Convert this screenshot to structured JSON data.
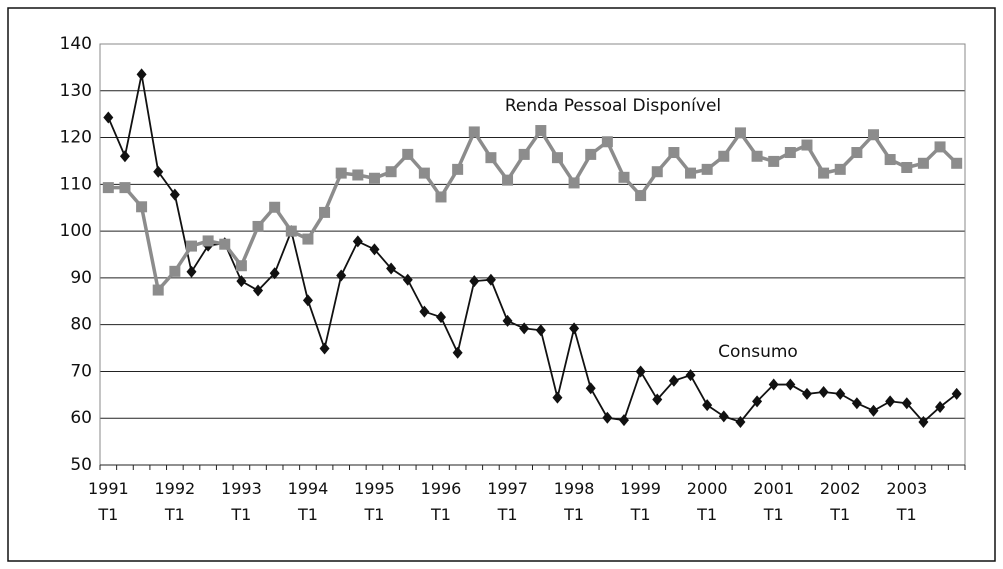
{
  "chart_data": {
    "type": "line",
    "categories": [
      "1991\nT1",
      null,
      null,
      null,
      "1992\nT1",
      null,
      null,
      null,
      "1993\nT1",
      null,
      null,
      null,
      "1994\nT1",
      null,
      null,
      null,
      "1995\nT1",
      null,
      null,
      null,
      "1996\nT1",
      null,
      null,
      null,
      "1997\nT1",
      null,
      null,
      null,
      "1998\nT1",
      null,
      null,
      null,
      "1999\nT1",
      null,
      null,
      null,
      "2000\nT1",
      null,
      null,
      null,
      "2001\nT1",
      null,
      null,
      null,
      "2002\nT1",
      null,
      null,
      null,
      "2003\nT1",
      null,
      null,
      null
    ],
    "series": [
      {
        "name": "Consumo",
        "color": "#111111",
        "marker": "diamond",
        "values": [
          124.3,
          116,
          133.5,
          112.7,
          107.8,
          91.3,
          96.9,
          97.4,
          89.3,
          87.3,
          91,
          100,
          85.2,
          74.9,
          90.5,
          97.8,
          96.1,
          92,
          89.6,
          82.8,
          81.6,
          74,
          89.3,
          89.6,
          80.8,
          79.2,
          78.8,
          64.4,
          79.2,
          66.4,
          60.1,
          59.6,
          70,
          64,
          68,
          69.2,
          62.8,
          60.4,
          59.2,
          63.6,
          67.2,
          67.2,
          65.2,
          65.6,
          65.2,
          63.2,
          61.6,
          63.6,
          63.2,
          59.2,
          62.4,
          65.2
        ]
      },
      {
        "name": "Renda Pessoal Disponível",
        "color": "#8c8c8c",
        "marker": "square",
        "values": [
          109.3,
          109.3,
          105.2,
          87.4,
          91.4,
          96.8,
          97.9,
          97.2,
          92.6,
          101,
          105.1,
          100,
          98.3,
          104,
          112.4,
          112,
          111.3,
          112.7,
          116.4,
          112.4,
          107.3,
          113.2,
          121.2,
          115.7,
          110.9,
          116.4,
          121.5,
          115.7,
          110.3,
          116.4,
          119.1,
          111.5,
          107.6,
          112.7,
          116.8,
          112.4,
          113.2,
          116,
          121,
          116,
          114.9,
          116.8,
          118.4,
          112.4,
          113.2,
          116.8,
          120.6,
          115.3,
          113.6,
          114.5,
          118,
          114.5
        ]
      }
    ],
    "ylim": [
      50,
      140
    ],
    "yticks": [
      50,
      60,
      70,
      80,
      90,
      100,
      110,
      120,
      130,
      140
    ],
    "grid": true
  }
}
